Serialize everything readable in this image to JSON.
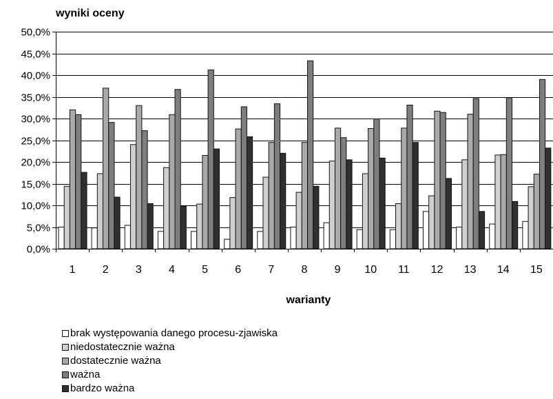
{
  "chart_data": {
    "type": "bar",
    "title": "wyniki oceny",
    "xlabel": "warianty",
    "ylabel": "",
    "ylim": [
      0,
      50
    ],
    "y_tick_labels": [
      "0,0%",
      "5,0%",
      "10,0%",
      "15,0%",
      "20,0%",
      "25,0%",
      "30,0%",
      "35,0%",
      "40,0%",
      "45,0%",
      "50,0%"
    ],
    "y_step": 5,
    "grid": true,
    "legend_position": "bottom-left",
    "categories": [
      "1",
      "2",
      "3",
      "4",
      "5",
      "6",
      "7",
      "8",
      "9",
      "10",
      "11",
      "12",
      "13",
      "14",
      "15"
    ],
    "series": [
      {
        "name": "brak występowania danego procesu-zjawiska",
        "color": "#ffffff",
        "values": [
          5.0,
          4.8,
          5.4,
          4.0,
          4.0,
          2.2,
          4.0,
          5.0,
          6.0,
          4.4,
          4.4,
          8.6,
          5.0,
          5.7,
          6.3
        ]
      },
      {
        "name": "niedostatecznie ważna",
        "color": "#cfcfcf",
        "values": [
          14.4,
          17.3,
          24.0,
          18.7,
          10.3,
          11.8,
          16.5,
          13.0,
          20.2,
          17.3,
          10.4,
          12.2,
          20.5,
          21.6,
          14.3
        ]
      },
      {
        "name": "dostatecznie ważna",
        "color": "#a9a9a9",
        "values": [
          32.0,
          37.0,
          33.0,
          30.9,
          21.5,
          27.6,
          24.5,
          24.5,
          27.8,
          27.7,
          27.8,
          31.7,
          31.0,
          21.7,
          17.2
        ]
      },
      {
        "name": "ważna",
        "color": "#7e7e7e",
        "values": [
          30.9,
          29.1,
          27.2,
          36.7,
          41.2,
          32.7,
          33.4,
          43.3,
          25.6,
          29.9,
          33.1,
          31.4,
          34.6,
          34.8,
          39.0
        ]
      },
      {
        "name": "bardzo ważna",
        "color": "#303030",
        "values": [
          17.6,
          11.9,
          10.4,
          9.8,
          23.0,
          25.8,
          22.0,
          14.4,
          20.5,
          20.9,
          24.5,
          16.2,
          8.6,
          10.9,
          23.2
        ]
      }
    ]
  }
}
